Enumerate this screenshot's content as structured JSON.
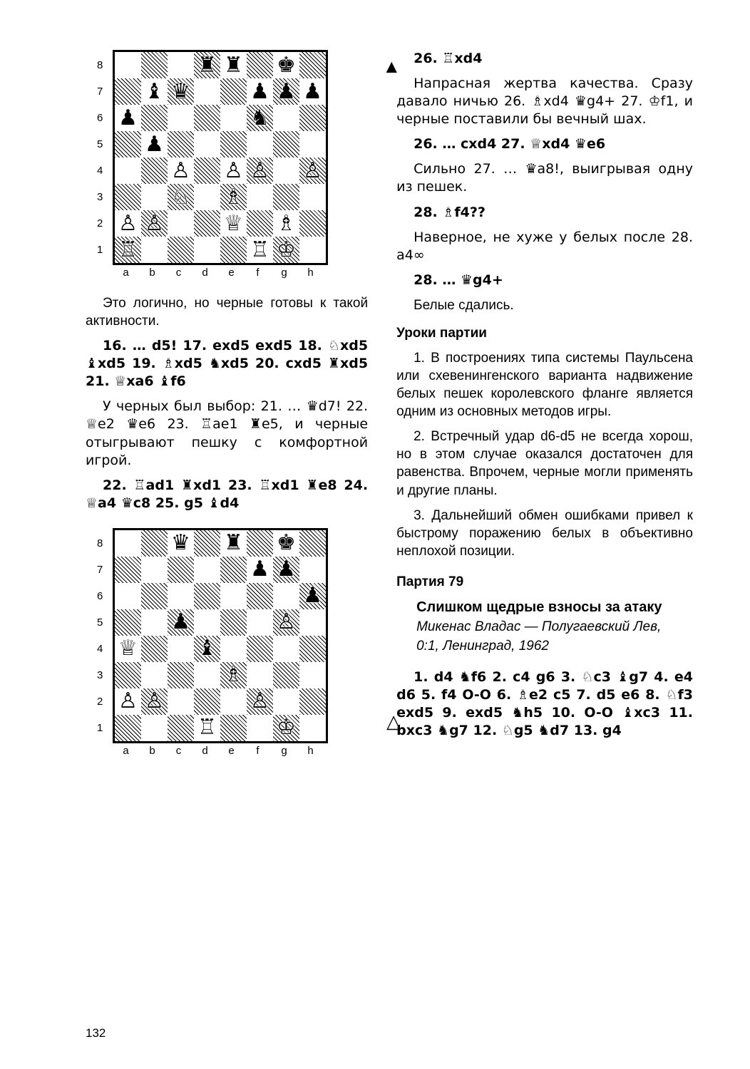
{
  "page_number": "132",
  "board1": {
    "turn_marker": "▲",
    "fen_rows": [
      "...rr.k.",
      ".bq..ppp",
      "p....n..",
      ".p......",
      "..P.PP.P",
      "..N.B...",
      "PP..Q.B.",
      "R....RK."
    ],
    "files": [
      "a",
      "b",
      "c",
      "d",
      "e",
      "f",
      "g",
      "h"
    ],
    "ranks": [
      "8",
      "7",
      "6",
      "5",
      "4",
      "3",
      "2",
      "1"
    ]
  },
  "board2": {
    "turn_marker": "△",
    "fen_rows": [
      "..q.r.k.",
      ".....pp.",
      ".......p",
      "..p...P.",
      "Q..b....",
      "....B...",
      "PP...P..",
      "...R..K."
    ],
    "files": [
      "a",
      "b",
      "c",
      "d",
      "e",
      "f",
      "g",
      "h"
    ],
    "ranks": [
      "8",
      "7",
      "6",
      "5",
      "4",
      "3",
      "2",
      "1"
    ]
  },
  "glyphs": {
    "K": "♔",
    "Q": "♕",
    "R": "♖",
    "B": "♗",
    "N": "♘",
    "P": "♙",
    "k": "♚",
    "q": "♛",
    "r": "♜",
    "b": "♝",
    "n": "♞",
    "p": "♟"
  },
  "left": {
    "p1": "Это логично, но черные готовы к такой активности.",
    "m1": "16. … d5! 17. exd5 exd5 18. ♘xd5 ♝xd5 19. ♗xd5 ♞xd5 20. cxd5 ♜xd5 21. ♕xa6 ♝f6",
    "p2": "У черных был выбор: 21. … ♛d7! 22. ♕e2 ♛e6 23. ♖ae1 ♜e5, и черные отыгрывают пешку с комфортной игрой.",
    "m2": "22. ♖ad1 ♜xd1 23. ♖xd1 ♜e8 24. ♕a4 ♛c8 25. g5 ♝d4"
  },
  "right": {
    "m3": "26. ♖xd4",
    "p3": "Напрасная жертва качества. Сразу давало ничью 26. ♗xd4 ♛g4+ 27. ♔f1, и черные поставили бы вечный шах.",
    "m4": "26. … cxd4 27. ♕xd4 ♛e6",
    "p4": "Сильно 27. … ♛a8!, выигрывая одну из пешек.",
    "m5": "28. ♗f4??",
    "p5": "Наверное, не хуже у белых после 28. a4∞",
    "m6": "28. … ♛g4+",
    "p6": "Белые сдались.",
    "uroki_title": "Уроки партии",
    "u1": "1. В построениях типа системы Паульсена или схевенингенского варианта надвижение белых пешек королевского фланге является одним из основных методов игры.",
    "u2": "2. Встречный удар d6-d5 не всегда хорош, но в этом случае оказался достаточен для равенства. Впрочем, черные могли применять и другие планы.",
    "u3": "3. Дальнейший обмен ошибками привел к быстрому поражению белых в объективно неплохой позиции.",
    "game79_label": "Партия 79",
    "game79_title": "Слишком щедрые взносы за атаку",
    "game79_sub1": "Микенас Владас — Полугаевский Лев,",
    "game79_sub2": "0:1, Ленинград, 1962",
    "opening": "1. d4 ♞f6 2. c4 g6 3. ♘c3 ♝g7 4. e4 d6 5. f4 O-O 6. ♗e2 c5 7. d5 e6 8. ♘f3 exd5 9. exd5 ♞h5 10. O-O ♝xc3 11. bxc3 ♞g7 12. ♘g5 ♞d7 13. g4"
  }
}
